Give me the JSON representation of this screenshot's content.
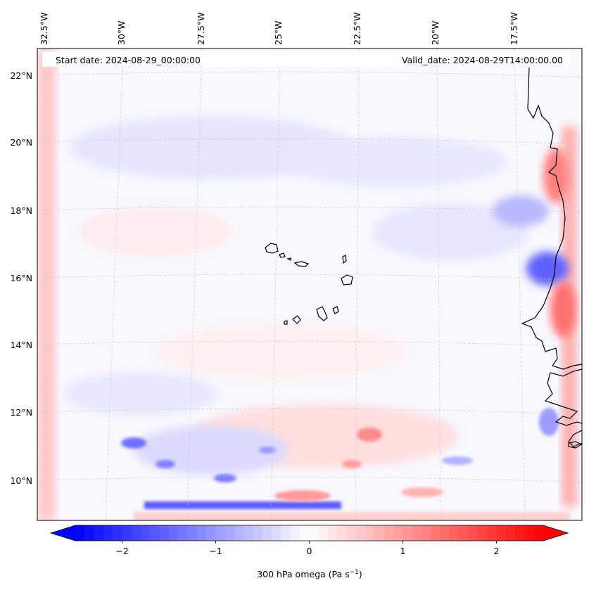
{
  "map": {
    "start_date_label": "Start date: 2024-08-29_00:00:00",
    "valid_date_label": "Valid_date: 2024-08-29T14:00:00.00",
    "lon_labels": [
      "32.5°W",
      "30°W",
      "27.5°W",
      "25°W",
      "22.5°W",
      "20°W",
      "17.5°W"
    ],
    "lat_labels": [
      "22°N",
      "20°N",
      "18°N",
      "16°N",
      "14°N",
      "12°N",
      "10°N"
    ],
    "colors": {
      "coast": "#000000",
      "grid": "#cccccc",
      "neg": "#0000ff",
      "pos": "#ff0000"
    }
  },
  "colorbar": {
    "tick_labels": [
      "−2",
      "−1",
      "0",
      "1",
      "2"
    ],
    "tick_values": [
      -2,
      -1,
      0,
      1,
      2
    ],
    "range": [
      -2.5,
      2.5
    ],
    "label_main": "300 hPa omega (Pa s",
    "label_exp": "−1",
    "label_close": ")"
  }
}
